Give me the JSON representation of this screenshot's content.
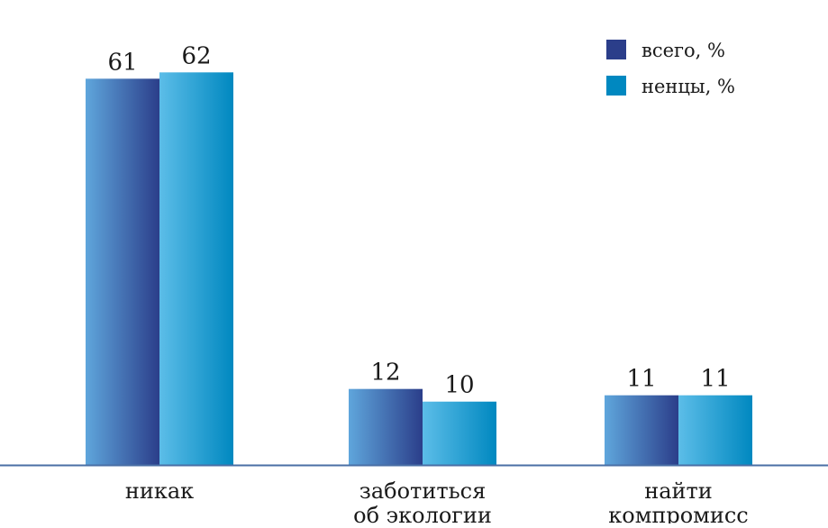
{
  "chart_data": {
    "type": "bar",
    "categories": [
      [
        "никак"
      ],
      [
        "заботиться",
        "об экологии"
      ],
      [
        "найти",
        "компромисс"
      ]
    ],
    "series": [
      {
        "name": "всего, %",
        "values": [
          61,
          12,
          11
        ],
        "color_dark": "#2b3e8a",
        "color_light": "#5fa6dc"
      },
      {
        "name": "ненцы, %",
        "values": [
          62,
          10,
          11
        ],
        "color_dark": "#0088c0",
        "color_light": "#5cbde8"
      }
    ],
    "ylim": [
      0,
      65
    ],
    "grid": false,
    "legend": "top-right",
    "axis_color": "#4a6fa5"
  }
}
